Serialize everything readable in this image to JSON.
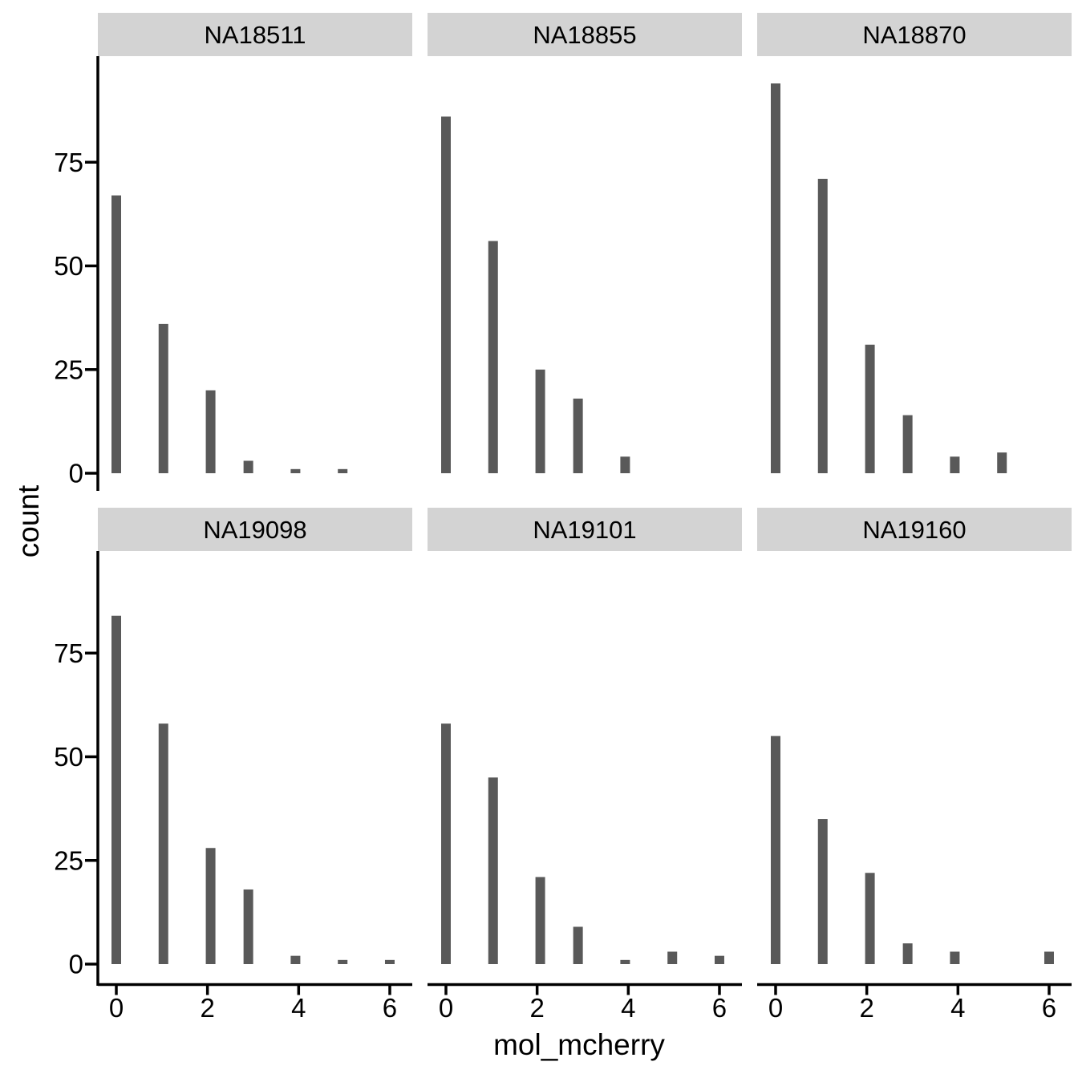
{
  "chart_data": {
    "type": "bar",
    "subtype": "faceted-histogram",
    "title": "",
    "xlabel": "mol_mcherry",
    "ylabel": "count",
    "x_ticks": [
      0,
      2,
      4,
      6
    ],
    "y_ticks": [
      0,
      25,
      50,
      75
    ],
    "xlim": [
      -0.35,
      6.35
    ],
    "ylim": [
      0,
      98
    ],
    "grid": "off",
    "legend": "none",
    "facet_layout": {
      "rows": 2,
      "cols": 3
    },
    "bin_width": 0.207,
    "bin_centers_for_value": {
      "0": 0,
      "1": 1.034,
      "2": 2.069,
      "3": 2.897,
      "4": 3.931,
      "5": 4.966,
      "6": 6.0
    },
    "facets": [
      {
        "label": "NA18511",
        "bars": [
          {
            "x": 0,
            "count": 67
          },
          {
            "x": 1,
            "count": 36
          },
          {
            "x": 2,
            "count": 20
          },
          {
            "x": 3,
            "count": 3
          },
          {
            "x": 4,
            "count": 1
          },
          {
            "x": 5,
            "count": 1
          }
        ]
      },
      {
        "label": "NA18855",
        "bars": [
          {
            "x": 0,
            "count": 86
          },
          {
            "x": 1,
            "count": 56
          },
          {
            "x": 2,
            "count": 25
          },
          {
            "x": 3,
            "count": 18
          },
          {
            "x": 4,
            "count": 4
          }
        ]
      },
      {
        "label": "NA18870",
        "bars": [
          {
            "x": 0,
            "count": 94
          },
          {
            "x": 1,
            "count": 71
          },
          {
            "x": 2,
            "count": 31
          },
          {
            "x": 3,
            "count": 14
          },
          {
            "x": 4,
            "count": 4
          },
          {
            "x": 5,
            "count": 5
          }
        ]
      },
      {
        "label": "NA19098",
        "bars": [
          {
            "x": 0,
            "count": 84
          },
          {
            "x": 1,
            "count": 58
          },
          {
            "x": 2,
            "count": 28
          },
          {
            "x": 3,
            "count": 18
          },
          {
            "x": 4,
            "count": 2
          },
          {
            "x": 5,
            "count": 1
          },
          {
            "x": 6,
            "count": 1
          }
        ]
      },
      {
        "label": "NA19101",
        "bars": [
          {
            "x": 0,
            "count": 58
          },
          {
            "x": 1,
            "count": 45
          },
          {
            "x": 2,
            "count": 21
          },
          {
            "x": 3,
            "count": 9
          },
          {
            "x": 4,
            "count": 1
          },
          {
            "x": 5,
            "count": 3
          },
          {
            "x": 6,
            "count": 2
          }
        ]
      },
      {
        "label": "NA19160",
        "bars": [
          {
            "x": 0,
            "count": 55
          },
          {
            "x": 1,
            "count": 35
          },
          {
            "x": 2,
            "count": 22
          },
          {
            "x": 3,
            "count": 5
          },
          {
            "x": 4,
            "count": 3
          },
          {
            "x": 6,
            "count": 3
          }
        ]
      }
    ],
    "colors": {
      "bar_fill": "#595959",
      "strip_bg": "#D3D3D3",
      "strip_text": "#000000",
      "axis": "#000000",
      "tick_text": "#000000",
      "background": "#FFFFFF"
    }
  }
}
